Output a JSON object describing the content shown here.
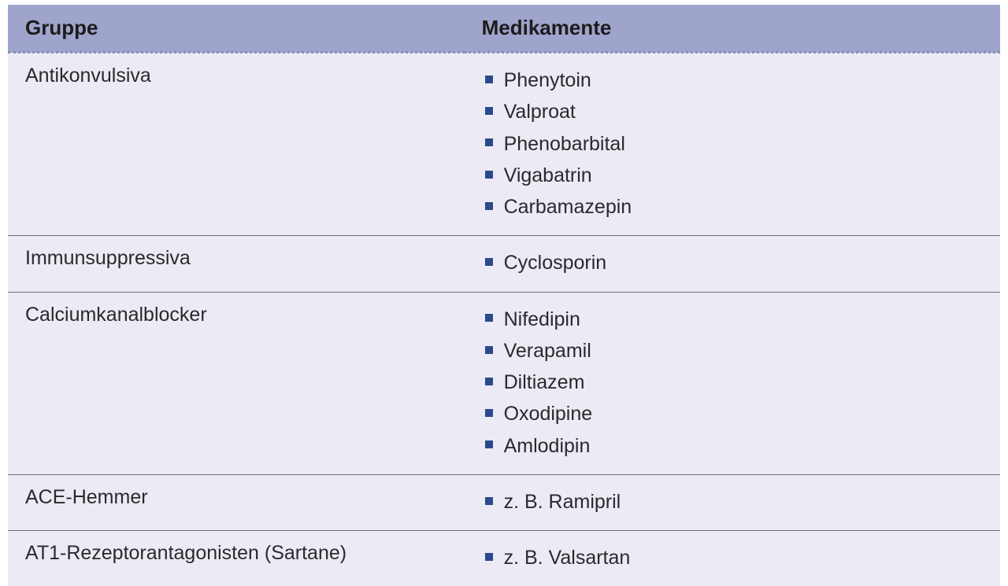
{
  "style": {
    "header_bg": "#9fa4cc",
    "header_text": "#1c1c1c",
    "header_border": "#8a8fb9",
    "body_bg": "#eceaf5",
    "row_border": "#6d6d78",
    "cell_text": "#2a2a2a",
    "bullet_color": "#2b4a8b",
    "header_font_size": "26px",
    "cell_font_size": "25px",
    "col_widths": [
      "46%",
      "54%"
    ]
  },
  "table": {
    "columns": [
      "Gruppe",
      "Medikamente"
    ],
    "rows": [
      {
        "group": "Antikonvulsiva",
        "meds": [
          "Phenytoin",
          "Valproat",
          "Phenobarbital",
          "Vigabatrin",
          "Carbamazepin"
        ]
      },
      {
        "group": "Immunsuppressiva",
        "meds": [
          "Cyclosporin"
        ]
      },
      {
        "group": "Calciumkanalblocker",
        "meds": [
          "Nifedipin",
          "Verapamil",
          "Diltiazem",
          "Oxodipine",
          "Amlodipin"
        ]
      },
      {
        "group": "ACE-Hemmer",
        "meds": [
          "z. B. Ramipril"
        ]
      },
      {
        "group": "AT1-Rezeptorantagonisten (Sartane)",
        "meds": [
          "z. B. Valsartan"
        ]
      }
    ]
  }
}
